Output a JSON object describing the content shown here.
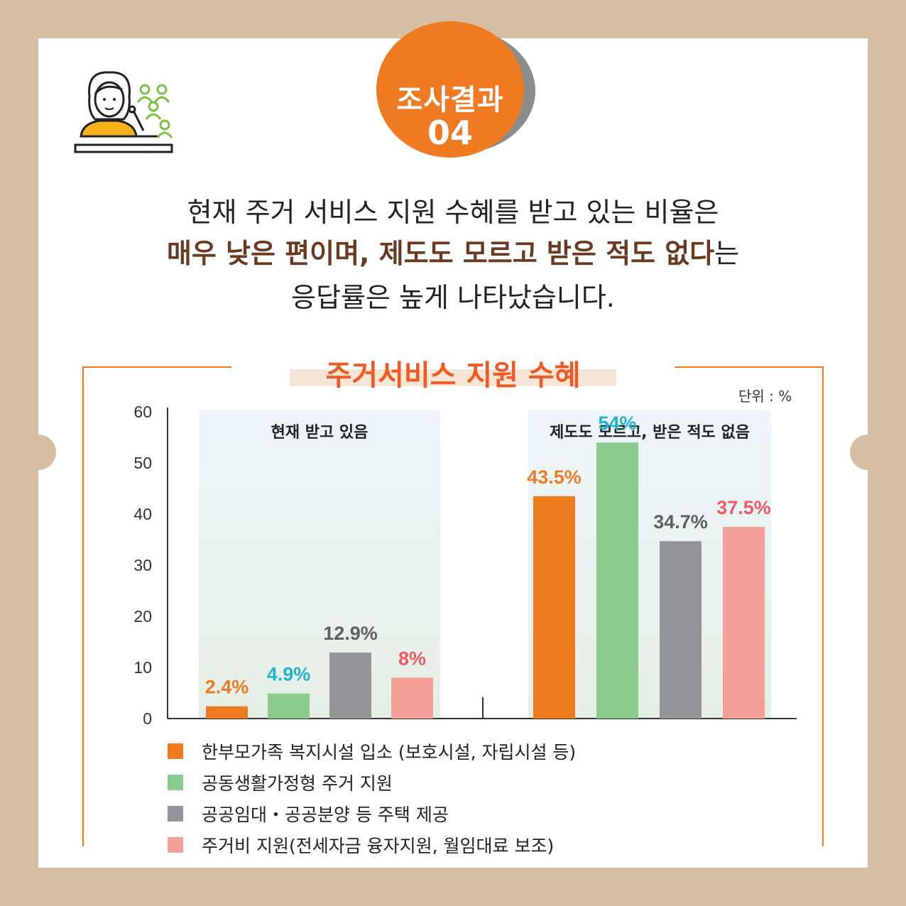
{
  "badge": {
    "title": "조사결과",
    "number": "04"
  },
  "lead": {
    "line1": "현재 주거 서비스 지원 수혜를 받고 있는 비율은",
    "line2_highlight": "매우 낮은 편이며, 제도도 모르고 받은 적도 없다",
    "line2_tail": "는",
    "line3": "응답률은 높게 나타났습니다."
  },
  "chart_data": {
    "type": "bar",
    "title": "주거서비스 지원 수혜",
    "unit": "단위 : %",
    "ylim": [
      0,
      60
    ],
    "yticks": [
      "0",
      "10",
      "20",
      "30",
      "40",
      "50",
      "60"
    ],
    "groups": [
      "현재 받고 있음",
      "제도도 모르고, 받은 적도 없음"
    ],
    "series": [
      {
        "name": "한부모가족 복지시설 입소 (보호시설, 자립시설 등)",
        "color": "#f07a22",
        "label_color": "#f07a22",
        "values": [
          2.4,
          43.5
        ],
        "labels": [
          "2.4%",
          "43.5%"
        ]
      },
      {
        "name": "공동생활가정형 주거 지원",
        "color": "#8bcb8e",
        "label_color": "#1fb3cf",
        "values": [
          4.9,
          54
        ],
        "labels": [
          "4.9%",
          "54%"
        ]
      },
      {
        "name": "공공임대・공공분양 등 주택 제공",
        "color": "#939598",
        "label_color": "#5f6062",
        "values": [
          12.9,
          34.7
        ],
        "labels": [
          "12.9%",
          "34.7%"
        ]
      },
      {
        "name": "주거비 지원(전세자금 융자지원, 월임대료 보조)",
        "color": "#f4a098",
        "label_color": "#ee5a62",
        "values": [
          8,
          37.5
        ],
        "labels": [
          "8%",
          "37.5%"
        ]
      }
    ],
    "grid": false,
    "legend": "bottom"
  }
}
